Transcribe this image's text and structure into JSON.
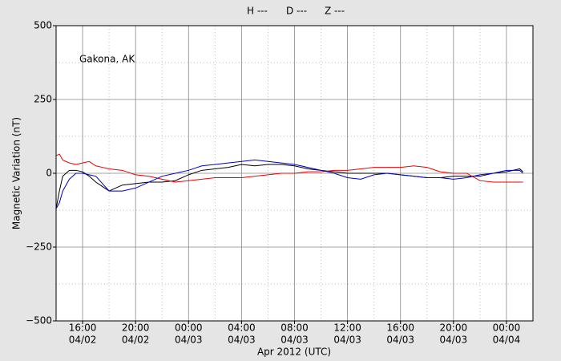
{
  "chart_data": {
    "type": "line",
    "ylabel": "Magnetic Variation (nT)",
    "xlabel": "Apr 2012 (UTC)",
    "annotation": "Gakona, AK",
    "ylim": [
      -500,
      500
    ],
    "yticks": [
      500,
      250,
      0,
      {
        "value": -250,
        "label": "−250"
      },
      {
        "value": -500,
        "label": "−500"
      }
    ],
    "minor_yticks": [
      375,
      125,
      -125,
      -375
    ],
    "xlim": [
      "2012-04-02T14:00Z",
      "2012-04-04T02:00Z"
    ],
    "xticks": [
      {
        "value": "2012-04-02T16:00Z",
        "label": [
          "16:00",
          "04/02"
        ]
      },
      {
        "value": "2012-04-02T20:00Z",
        "label": [
          "20:00",
          "04/02"
        ]
      },
      {
        "value": "2012-04-03T00:00Z",
        "label": [
          "00:00",
          "04/03"
        ]
      },
      {
        "value": "2012-04-03T04:00Z",
        "label": [
          "04:00",
          "04/03"
        ]
      },
      {
        "value": "2012-04-03T08:00Z",
        "label": [
          "08:00",
          "04/03"
        ]
      },
      {
        "value": "2012-04-03T12:00Z",
        "label": [
          "12:00",
          "04/03"
        ]
      },
      {
        "value": "2012-04-03T16:00Z",
        "label": [
          "16:00",
          "04/03"
        ]
      },
      {
        "value": "2012-04-03T20:00Z",
        "label": [
          "20:00",
          "04/03"
        ]
      },
      {
        "value": "2012-04-04T00:00Z",
        "label": [
          "00:00",
          "04/04"
        ]
      }
    ],
    "minor_xticks": [
      "2012-04-02T18:00Z",
      "2012-04-02T22:00Z",
      "2012-04-03T02:00Z",
      "2012-04-03T06:00Z",
      "2012-04-03T10:00Z",
      "2012-04-03T14:00Z",
      "2012-04-03T18:00Z",
      "2012-04-03T22:00Z"
    ],
    "grid": true,
    "x": [
      "2012-04-02T14:00Z",
      "2012-04-02T14:15Z",
      "2012-04-02T14:30Z",
      "2012-04-02T15:00Z",
      "2012-04-02T15:30Z",
      "2012-04-02T16:00Z",
      "2012-04-02T16:30Z",
      "2012-04-02T17:00Z",
      "2012-04-02T18:00Z",
      "2012-04-02T19:00Z",
      "2012-04-02T20:00Z",
      "2012-04-02T21:00Z",
      "2012-04-02T22:00Z",
      "2012-04-02T23:00Z",
      "2012-04-03T00:00Z",
      "2012-04-03T01:00Z",
      "2012-04-03T02:00Z",
      "2012-04-03T03:00Z",
      "2012-04-03T04:00Z",
      "2012-04-03T05:00Z",
      "2012-04-03T06:00Z",
      "2012-04-03T07:00Z",
      "2012-04-03T08:00Z",
      "2012-04-03T09:00Z",
      "2012-04-03T10:00Z",
      "2012-04-03T11:00Z",
      "2012-04-03T12:00Z",
      "2012-04-03T13:00Z",
      "2012-04-03T14:00Z",
      "2012-04-03T15:00Z",
      "2012-04-03T16:00Z",
      "2012-04-03T17:00Z",
      "2012-04-03T18:00Z",
      "2012-04-03T19:00Z",
      "2012-04-03T20:00Z",
      "2012-04-03T21:00Z",
      "2012-04-03T22:00Z",
      "2012-04-03T23:00Z",
      "2012-04-04T00:00Z",
      "2012-04-04T01:00Z",
      "2012-04-04T01:15Z"
    ],
    "series": [
      {
        "name": "H ---",
        "color": "#000000",
        "values": [
          -120,
          -60,
          -10,
          10,
          10,
          5,
          -10,
          -30,
          -60,
          -40,
          -35,
          -30,
          -30,
          -25,
          -5,
          10,
          15,
          20,
          30,
          25,
          30,
          30,
          25,
          15,
          10,
          5,
          0,
          0,
          0,
          0,
          -5,
          -10,
          -15,
          -15,
          -10,
          -10,
          -10,
          0,
          5,
          15,
          5
        ]
      },
      {
        "name": "D ---",
        "color": "#ee0000",
        "values": [
          60,
          65,
          45,
          35,
          30,
          35,
          40,
          25,
          15,
          10,
          -5,
          -10,
          -20,
          -30,
          -25,
          -20,
          -15,
          -15,
          -15,
          -10,
          -5,
          0,
          0,
          5,
          5,
          10,
          10,
          15,
          20,
          20,
          20,
          25,
          20,
          5,
          0,
          0,
          -25,
          -30,
          -30,
          -30,
          -30
        ]
      },
      {
        "name": "Z ---",
        "color": "#0000cc",
        "values": [
          -120,
          -100,
          -60,
          -20,
          0,
          0,
          -5,
          -10,
          -60,
          -60,
          -50,
          -30,
          -10,
          0,
          10,
          25,
          30,
          35,
          40,
          45,
          40,
          35,
          30,
          20,
          10,
          0,
          -15,
          -20,
          -5,
          0,
          -5,
          -10,
          -15,
          -15,
          -20,
          -15,
          -5,
          0,
          10,
          10,
          0
        ]
      }
    ]
  }
}
